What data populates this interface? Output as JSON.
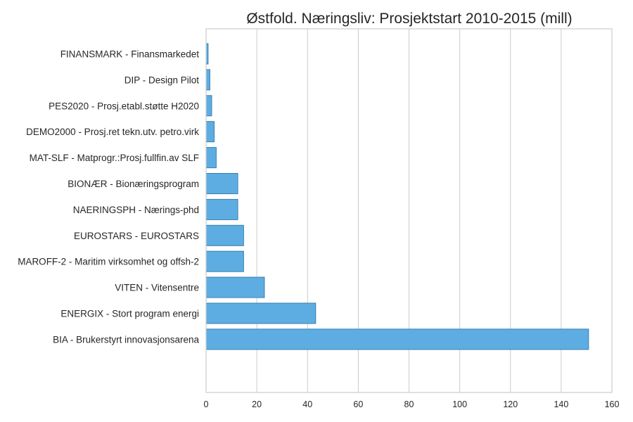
{
  "chart_data": {
    "type": "bar",
    "orientation": "horizontal",
    "title": "Østfold. Næringsliv: Prosjektstart 2010-2015 (mill)",
    "xlabel": "",
    "ylabel": "",
    "xlim": [
      0,
      160
    ],
    "xticks": [
      0,
      20,
      40,
      60,
      80,
      100,
      120,
      140,
      160
    ],
    "grid": true,
    "bar_color": "#5dade2",
    "bar_edge_color": "#3a7fb0",
    "categories": [
      "FINANSMARK - Finansmarkedet",
      "DIP - Design Pilot",
      "PES2020 - Prosj.etabl.støtte H2020",
      "DEMO2000 - Prosj.ret tekn.utv. petro.virk",
      "MAT-SLF - Matprogr.:Prosj.fullfin.av SLF",
      "BIONÆR - Bionæringsprogram",
      "NAERINGSPH - Nærings-phd",
      "EUROSTARS - EUROSTARS",
      "MAROFF-2 - Maritim virksomhet og offsh-2",
      "VITEN - Vitensentre",
      "ENERGIX - Stort program energi",
      "BIA - Brukerstyrt innovasjonsarena"
    ],
    "values": [
      0.8,
      1.5,
      2.2,
      3.2,
      4.0,
      12.5,
      12.5,
      14.8,
      14.8,
      23.0,
      43.2,
      150.8
    ]
  }
}
